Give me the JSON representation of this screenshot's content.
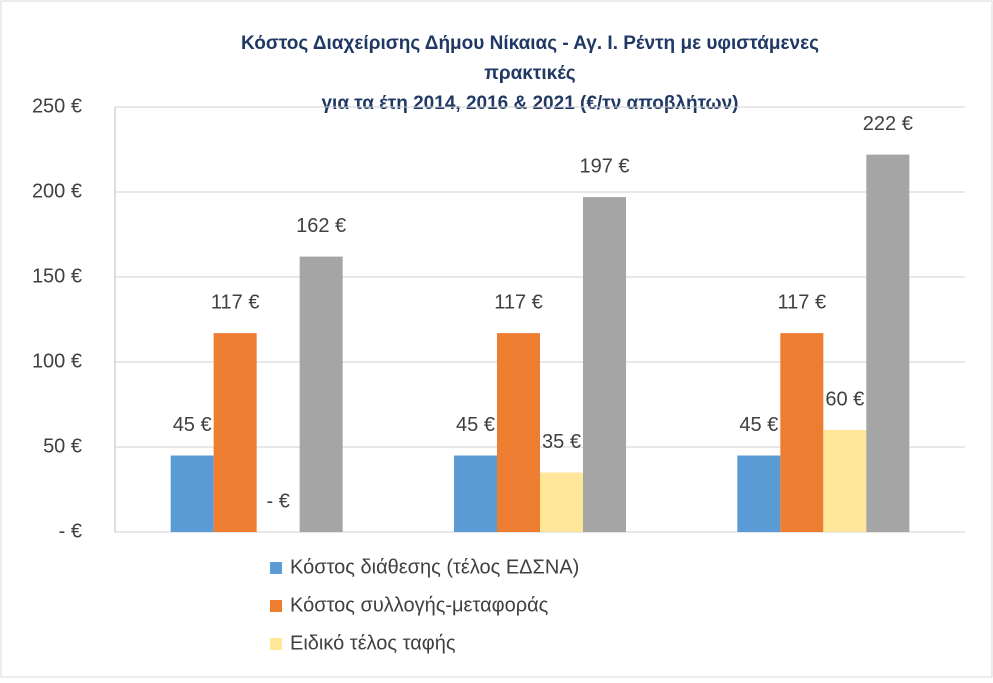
{
  "chart_data": {
    "type": "bar",
    "title": [
      "Κόστος Διαχείρισης Δήμου Νίκαιας - Αγ. Ι. Ρέντη με υφιστάμενες",
      "πρακτικές",
      "για τα έτη 2014, 2016 & 2021 (€/τν αποβλήτων)"
    ],
    "categories": [
      null,
      null,
      null
    ],
    "series": [
      {
        "name": "Κόστος διάθεσης (τέλος ΕΔΣΝΑ)",
        "color": "#5b9bd5",
        "values": [
          45,
          45,
          45
        ],
        "value_labels": [
          "45 €",
          "45 €",
          "45 €"
        ]
      },
      {
        "name": "Κόστος συλλογής-μεταφοράς",
        "color": "#ed7d31",
        "values": [
          117,
          117,
          117
        ],
        "value_labels": [
          "117 €",
          "117 €",
          "117 €"
        ]
      },
      {
        "name": "Ειδικό τέλος ταφής",
        "color": "#ffe699",
        "values": [
          0,
          35,
          60
        ],
        "value_labels": [
          "-   €",
          "35 €",
          "60 €"
        ]
      },
      {
        "color": "#a5a5a5",
        "values": [
          162,
          197,
          222
        ],
        "value_labels": [
          "162 €",
          "197 €",
          "222 €"
        ]
      }
    ],
    "ylim": [
      0,
      250
    ],
    "yticks": [
      {
        "value": 0,
        "label": "-   €"
      },
      {
        "value": 50,
        "label": "50 €"
      },
      {
        "value": 100,
        "label": "100 €"
      },
      {
        "value": 150,
        "label": "150 €"
      },
      {
        "value": 200,
        "label": "200 €"
      },
      {
        "value": 250,
        "label": "250 €"
      }
    ],
    "grid": true
  }
}
